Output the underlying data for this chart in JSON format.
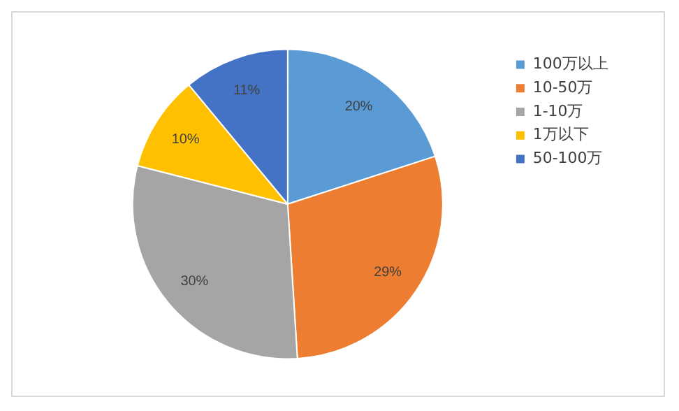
{
  "chart_data": {
    "type": "pie",
    "categories": [
      "100万以上",
      "10-50万",
      "1-10万",
      "1万以下",
      "50-100万"
    ],
    "values": [
      20,
      29,
      30,
      10,
      11
    ],
    "colors": [
      "#5b9bd5",
      "#ed7d31",
      "#a5a5a5",
      "#ffc000",
      "#4472c4"
    ],
    "value_labels": [
      "20%",
      "29%",
      "30%",
      "10%",
      "11%"
    ],
    "legend": "top right"
  }
}
